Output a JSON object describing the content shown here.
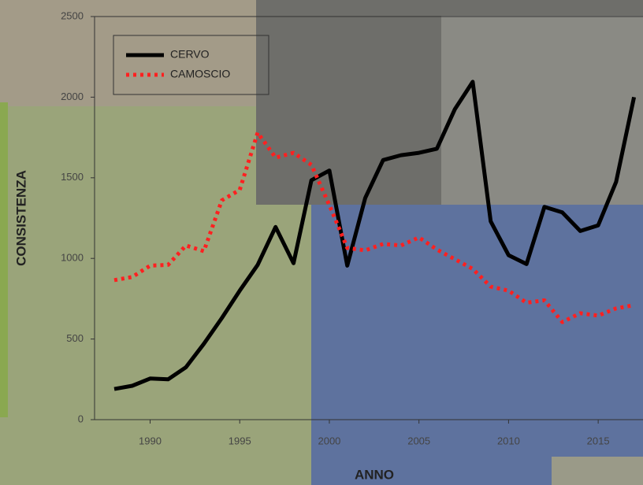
{
  "chart_data": {
    "type": "line",
    "x": [
      1988,
      1989,
      1990,
      1991,
      1992,
      1993,
      1994,
      1995,
      1996,
      1997,
      1998,
      1999,
      2000,
      2001,
      2002,
      2003,
      2004,
      2005,
      2006,
      2007,
      2008,
      2009,
      2010,
      2011,
      2012,
      2013,
      2014,
      2015,
      2016,
      2017
    ],
    "series": [
      {
        "name": "CERVO",
        "color": "#000000",
        "style": "solid",
        "values": [
          190,
          210,
          255,
          250,
          325,
          470,
          630,
          800,
          960,
          1195,
          970,
          1485,
          1545,
          955,
          1375,
          1610,
          1640,
          1655,
          1680,
          1925,
          2095,
          1230,
          1020,
          965,
          1320,
          1285,
          1170,
          1205,
          1475,
          2000
        ]
      },
      {
        "name": "CAMOSCIO",
        "color": "#ff2020",
        "style": "dotted",
        "values": [
          865,
          885,
          955,
          960,
          1080,
          1045,
          1360,
          1425,
          1780,
          1625,
          1655,
          1580,
          1330,
          1065,
          1050,
          1090,
          1080,
          1130,
          1055,
          995,
          935,
          825,
          800,
          725,
          740,
          605,
          660,
          645,
          690,
          710
        ]
      }
    ],
    "xlabel": "ANNO",
    "ylabel": "CONSISTENZA",
    "xlim": [
      1986.9,
      2017.5
    ],
    "xticks": [
      1990,
      1995,
      2000,
      2005,
      2010,
      2015
    ],
    "ylim": [
      0,
      2500
    ],
    "yticks": [
      0,
      500,
      1000,
      1500,
      2000,
      2500
    ],
    "legend": "upper left"
  }
}
